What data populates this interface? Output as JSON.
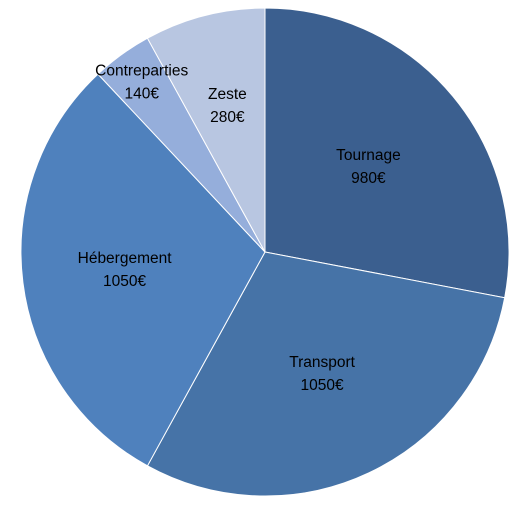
{
  "chart_data": {
    "type": "pie",
    "title": "",
    "currency_suffix": "€",
    "start_angle_deg": 0,
    "direction": "clockwise",
    "categories": [
      "Tournage",
      "Transport",
      "Hébergement",
      "Contreparties",
      "Zeste"
    ],
    "values": [
      980,
      1050,
      1050,
      140,
      280
    ],
    "value_labels": [
      "980€",
      "1050€",
      "1050€",
      "140€",
      "280€"
    ],
    "colors": [
      "#3b5f8f",
      "#4673a7",
      "#4f81bd",
      "#95aedb",
      "#b8c6e1"
    ],
    "legend": "none",
    "labels_inside": true
  }
}
